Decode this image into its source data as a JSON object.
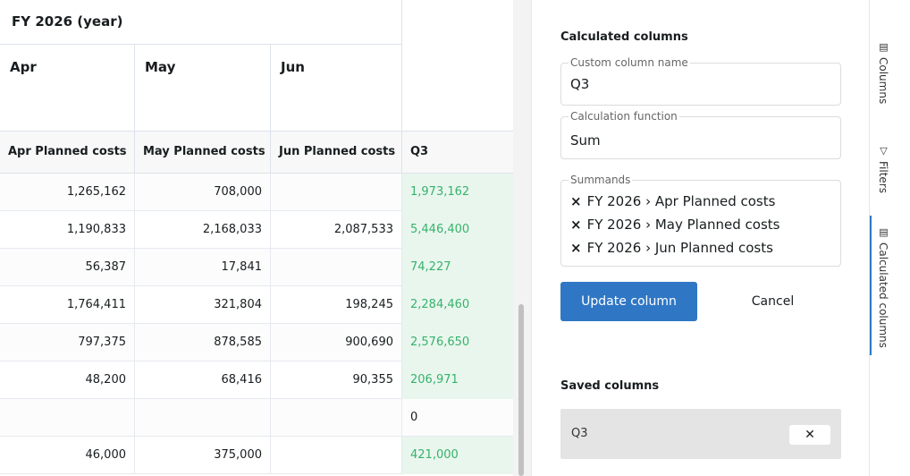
{
  "grid": {
    "group_header": "FY 2026 (year)",
    "months": [
      "Apr",
      "May",
      "Jun"
    ],
    "columns": [
      "Apr Planned costs",
      "May Planned costs",
      "Jun Planned costs",
      "Q3"
    ],
    "rows": [
      [
        "1,265,162",
        "708,000",
        "",
        "1,973,162"
      ],
      [
        "1,190,833",
        "2,168,033",
        "2,087,533",
        "5,446,400"
      ],
      [
        "56,387",
        "17,841",
        "",
        "74,227"
      ],
      [
        "1,764,411",
        "321,804",
        "198,245",
        "2,284,460"
      ],
      [
        "797,375",
        "878,585",
        "900,690",
        "2,576,650"
      ],
      [
        "48,200",
        "68,416",
        "90,355",
        "206,971"
      ],
      [
        "",
        "",
        "",
        "0"
      ],
      [
        "46,000",
        "375,000",
        "",
        "421,000"
      ]
    ]
  },
  "panel": {
    "title": "Calculated columns",
    "name_field": {
      "label": "Custom column name",
      "value": "Q3"
    },
    "function_field": {
      "label": "Calculation function",
      "value": "Sum"
    },
    "summands_field": {
      "label": "Summands",
      "items": [
        "FY 2026 › Apr Planned costs",
        "FY 2026 › May Planned costs",
        "FY 2026 › Jun Planned costs"
      ],
      "remove_glyph": "×"
    },
    "update_button": "Update column",
    "cancel_button": "Cancel",
    "saved_title": "Saved columns",
    "saved_items": [
      {
        "name": "Q3",
        "remove_glyph": "✕"
      }
    ]
  },
  "side_tabs": [
    {
      "label": "Columns",
      "icon": "columns-icon",
      "glyph": "▤",
      "active": false
    },
    {
      "label": "Filters",
      "icon": "filter-icon",
      "glyph": "▽",
      "active": false
    },
    {
      "label": "Calculated columns",
      "icon": "calculator-icon",
      "glyph": "▤",
      "active": true
    }
  ],
  "colors": {
    "accent": "#2f77c4",
    "calc_text": "#36b36b",
    "calc_bg": "#e9f6ee"
  }
}
